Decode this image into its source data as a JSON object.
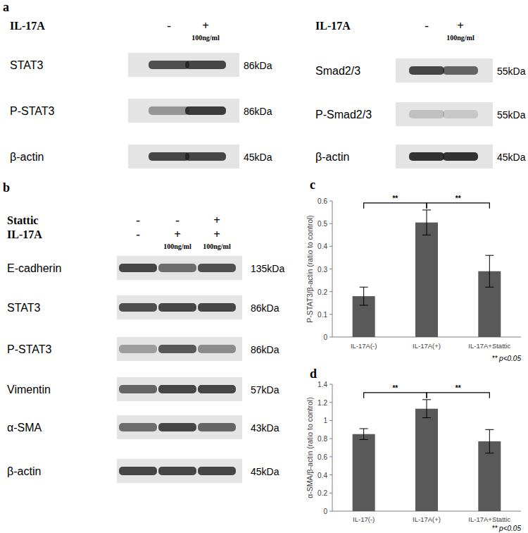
{
  "blots": [
    {
      "panel": "a",
      "treatments": [
        {
          "label": "IL-17A",
          "signs": [
            "-",
            "+"
          ],
          "doses": [
            null,
            "100ng/ml"
          ]
        }
      ],
      "rows": [
        {
          "label": "STAT3",
          "kda": "86kDa",
          "band_intensity": [
            0.75,
            0.8
          ]
        },
        {
          "label": "P-STAT3",
          "kda": "86kDa",
          "band_intensity": [
            0.4,
            0.85
          ]
        },
        {
          "label": "β-actin",
          "kda": "45kDa",
          "band_intensity": [
            0.8,
            0.8
          ]
        }
      ]
    },
    {
      "treatments": [
        {
          "label": "IL-17A",
          "signs": [
            "-",
            "+"
          ],
          "doses": [
            null,
            "100ng/ml"
          ]
        }
      ],
      "rows": [
        {
          "label": "Smad2/3",
          "kda": "55kDa",
          "band_intensity": [
            0.8,
            0.65
          ]
        },
        {
          "label": "P-Smad2/3",
          "kda": "55kDa",
          "band_intensity": [
            0.18,
            0.14
          ]
        },
        {
          "label": "β-actin",
          "kda": "45kDa",
          "band_intensity": [
            0.9,
            0.9
          ]
        }
      ]
    },
    {
      "panel": "b",
      "treatments": [
        {
          "label": "Stattic",
          "signs": [
            "-",
            "-",
            "+"
          ],
          "doses": [
            null,
            null,
            null
          ]
        },
        {
          "label": "IL-17A",
          "signs": [
            "-",
            "+",
            "+"
          ],
          "doses": [
            null,
            "100ng/ml",
            "100ng/ml"
          ]
        }
      ],
      "rows": [
        {
          "label": "E-cadherin",
          "kda": "135kDa",
          "band_intensity": [
            0.8,
            0.6,
            0.75
          ]
        },
        {
          "label": "STAT3",
          "kda": "86kDa",
          "band_intensity": [
            0.75,
            0.8,
            0.8
          ]
        },
        {
          "label": "P-STAT3",
          "kda": "86kDa",
          "band_intensity": [
            0.35,
            0.7,
            0.45
          ]
        },
        {
          "label": "Vimentin",
          "kda": "57kDa",
          "band_intensity": [
            0.65,
            0.8,
            0.8
          ]
        },
        {
          "label": "α-SMA",
          "kda": "43kDa",
          "band_intensity": [
            0.6,
            0.8,
            0.65
          ]
        },
        {
          "label": "β-actin",
          "kda": "45kDa",
          "band_intensity": [
            0.8,
            0.8,
            0.8
          ]
        }
      ]
    }
  ],
  "chart_data": [
    {
      "panel": "c",
      "type": "bar",
      "categories": [
        "IL-17A(-)",
        "IL-17A(+)",
        "IL-17A+Stattic"
      ],
      "values": [
        0.18,
        0.505,
        0.29
      ],
      "errors": [
        0.04,
        0.055,
        0.07
      ],
      "color": "#595959",
      "y_label": "P-STAT3/β-actin (ratio to control)",
      "ylim": [
        0,
        0.6
      ],
      "yticks": [
        0,
        0.1,
        0.2,
        0.3,
        0.4,
        0.5,
        0.6
      ],
      "grid": false,
      "annotations": [
        "**",
        "**"
      ],
      "footnote": "** p<0.05"
    },
    {
      "panel": "d",
      "type": "bar",
      "categories": [
        "IL-17(-)",
        "IL-17A(+)",
        "IL-17A+Stattic"
      ],
      "values": [
        0.85,
        1.13,
        0.77
      ],
      "errors": [
        0.06,
        0.1,
        0.13
      ],
      "color": "#595959",
      "y_label": "α-SMA/β-actin (ratio to control)",
      "ylim": [
        0,
        1.4
      ],
      "yticks": [
        0,
        0.2,
        0.4,
        0.6,
        0.8,
        1,
        1.2,
        1.4
      ],
      "grid": false,
      "annotations": [
        "**",
        "**"
      ],
      "footnote": "** p<0.05"
    }
  ]
}
